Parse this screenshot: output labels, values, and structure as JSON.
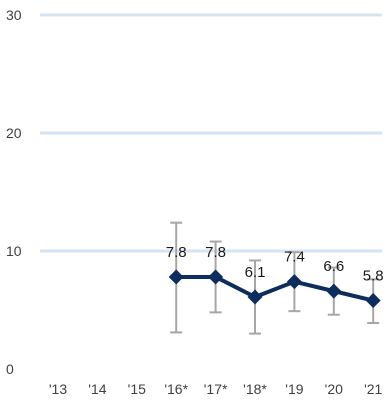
{
  "chart_data": {
    "type": "line",
    "categories": [
      "'13",
      "'14",
      "'15",
      "'16*",
      "'17*",
      "'18*",
      "'19",
      "'20",
      "'21"
    ],
    "series": [
      {
        "values": [
          null,
          null,
          null,
          7.8,
          7.8,
          6.1,
          7.4,
          6.6,
          5.8
        ],
        "error_low": [
          null,
          null,
          null,
          3.1,
          4.8,
          3.0,
          4.9,
          4.6,
          3.9
        ],
        "error_high": [
          null,
          null,
          null,
          12.4,
          10.8,
          9.2,
          9.9,
          8.6,
          7.6
        ],
        "data_labels": [
          "",
          "",
          "",
          "7.8",
          "7.8",
          "6.1",
          "7.4",
          "6.6",
          "5.8"
        ]
      }
    ],
    "yticks": [
      "0",
      "10",
      "20",
      "30"
    ],
    "ylim": [
      0,
      30
    ],
    "title": "",
    "xlabel": "",
    "ylabel": "",
    "grid": true,
    "legend": "none",
    "colors": {
      "line": "#0c2d5e",
      "marker": "#0c2d5e",
      "error_bar": "#a6a6a6",
      "gridline": "#d6e3f0",
      "tick_text": "#404040",
      "label_text": "#1a1a1a"
    }
  }
}
